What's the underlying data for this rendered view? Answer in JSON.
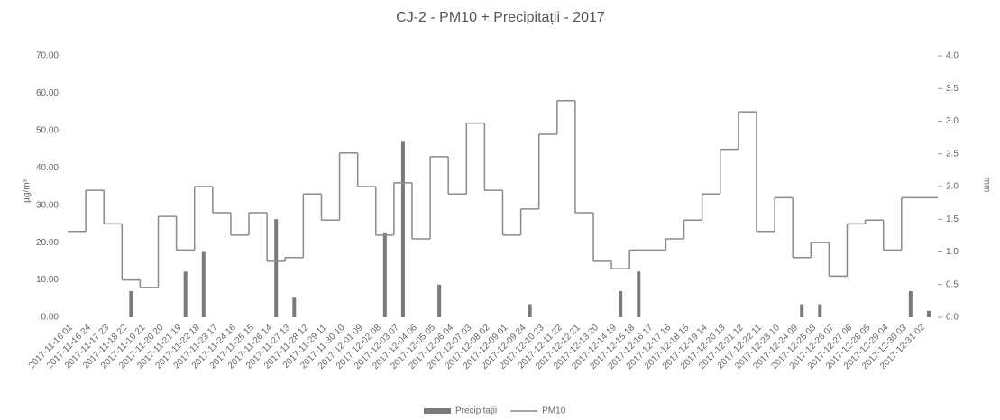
{
  "chart_data": {
    "type": "step-bar-combo",
    "title": "CJ-2 - PM10 + Precipitații - 2017",
    "y_label": "µg/m³",
    "y2_label": "mm",
    "categories": [
      "2017-11-16 01",
      "2017-11-16 24",
      "2017-11-17 23",
      "2017-11-18 22",
      "2017-11-19 21",
      "2017-11-20 20",
      "2017-11-21 19",
      "2017-11-22 18",
      "2017-11-23 17",
      "2017-11-24 16",
      "2017-11-25 15",
      "2017-11-26 14",
      "2017-11-27 13",
      "2017-11-28 12",
      "2017-11-29 11",
      "2017-11-30 10",
      "2017-12-01 09",
      "2017-12-02 08",
      "2017-12-03 07",
      "2017-12-04 06",
      "2017-12-05 05",
      "2017-12-06 04",
      "2017-12-07 03",
      "2017-12-08 02",
      "2017-12-09 01",
      "2017-12-09 24",
      "2017-12-10 23",
      "2017-12-11 22",
      "2017-12-12 21",
      "2017-12-13 20",
      "2017-12-14 19",
      "2017-12-15 18",
      "2017-12-16 17",
      "2017-12-17 16",
      "2017-12-18 15",
      "2017-12-19 14",
      "2017-12-20 13",
      "2017-12-21 12",
      "2017-12-22 11",
      "2017-12-23 10",
      "2017-12-24 09",
      "2017-12-25 08",
      "2017-12-26 07",
      "2017-12-27 06",
      "2017-12-28 05",
      "2017-12-29 04",
      "2017-12-30 03",
      "2017-12-31 02"
    ],
    "series": [
      {
        "name": "Precipitații",
        "type": "bar",
        "axis": "y2",
        "color": "#7a7a7a",
        "values": [
          0,
          0,
          0,
          0.4,
          0,
          0,
          0.7,
          1.0,
          0,
          0,
          0,
          1.5,
          0.3,
          0,
          0,
          0,
          0,
          1.3,
          2.7,
          0,
          0.5,
          0,
          0,
          0,
          0,
          0.2,
          0,
          0,
          0,
          0,
          0.4,
          0.7,
          0,
          0,
          0,
          0,
          0,
          0,
          0,
          0,
          0.2,
          0.2,
          0,
          0,
          0,
          0,
          0.4,
          0.1
        ]
      },
      {
        "name": "PM10",
        "type": "step",
        "axis": "y",
        "color": "#8a8a8a",
        "values": [
          23,
          34,
          25,
          10,
          8,
          27,
          18,
          35,
          28,
          22,
          28,
          15,
          16,
          33,
          26,
          44,
          35,
          22,
          36,
          21,
          43,
          33,
          52,
          34,
          22,
          29,
          49,
          58,
          28,
          15,
          13,
          18,
          18,
          21,
          26,
          33,
          45,
          55,
          23,
          32,
          16,
          20,
          11,
          25,
          26,
          18,
          32,
          32
        ]
      }
    ],
    "ylim": [
      0,
      70
    ],
    "yticks": [
      {
        "value": 0,
        "label": "0.00"
      },
      {
        "value": 10,
        "label": "10.00"
      },
      {
        "value": 20,
        "label": "20.00"
      },
      {
        "value": 30,
        "label": "30.00"
      },
      {
        "value": 40,
        "label": "40.00"
      },
      {
        "value": 50,
        "label": "50.00"
      },
      {
        "value": 60,
        "label": "60.00"
      },
      {
        "value": 70,
        "label": "70.00"
      }
    ],
    "y2lim": [
      0,
      4
    ],
    "y2ticks": [
      {
        "value": 0,
        "label": "0.0"
      },
      {
        "value": 0.5,
        "label": "0.5"
      },
      {
        "value": 1,
        "label": "1.0"
      },
      {
        "value": 1.5,
        "label": "1.5"
      },
      {
        "value": 2,
        "label": "2.0"
      },
      {
        "value": 2.5,
        "label": "2.5"
      },
      {
        "value": 3,
        "label": "3.0"
      },
      {
        "value": 3.5,
        "label": "3.5"
      },
      {
        "value": 4,
        "label": "4.0"
      }
    ],
    "grid": false,
    "legend_position": "bottom"
  }
}
